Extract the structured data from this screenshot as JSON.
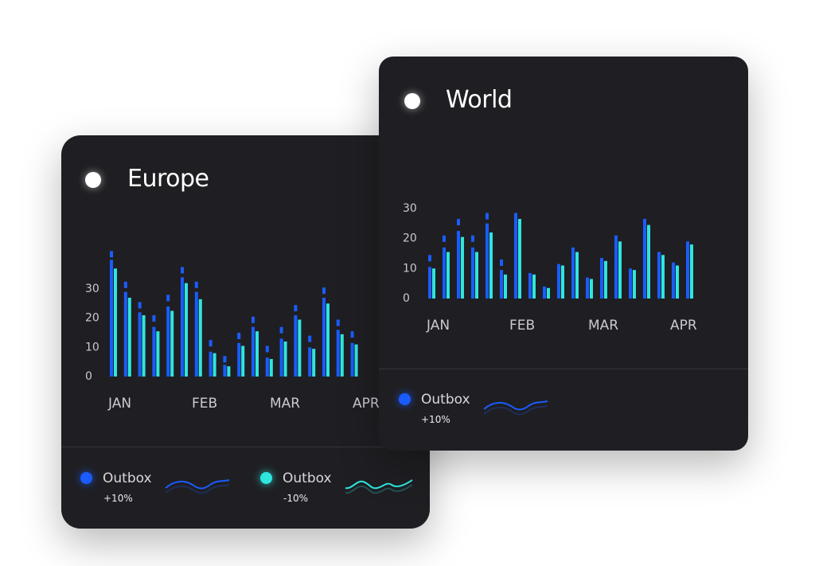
{
  "colors": {
    "outbox_blue": "#1a5cff",
    "outbox_cyan": "#2ee6de",
    "card_bg": "#1f1f23",
    "axis_text": "#c9c9cf"
  },
  "cards": {
    "europe": {
      "title": "Europe",
      "legend": [
        {
          "label": "Outbox",
          "change": "+10%",
          "color": "#1a5cff"
        },
        {
          "label": "Outbox",
          "change": "-10%",
          "color": "#2ee6de"
        }
      ]
    },
    "world": {
      "title": "World",
      "legend": [
        {
          "label": "Outbox",
          "change": "+10%",
          "color": "#1a5cff"
        }
      ]
    }
  },
  "chart_data": [
    {
      "type": "bar",
      "title": "Europe",
      "xlabel": "",
      "ylabel": "",
      "ylim": [
        0,
        45
      ],
      "yticks": [
        "0",
        "10",
        "20",
        "30"
      ],
      "xtick_labels": [
        "JAN",
        "FEB",
        "MAR",
        "APR"
      ],
      "series": [
        {
          "name": "Outbox",
          "color": "#1a5cff",
          "values": [
            40,
            29,
            22,
            17,
            24,
            34,
            29,
            8.5,
            4,
            11.5,
            17,
            6.5,
            13,
            21,
            10,
            27,
            16,
            11.5
          ],
          "cap_values": [
            43,
            32.5,
            25.5,
            21,
            28,
            37.5,
            32.5,
            12.5,
            7,
            15,
            20.5,
            10.5,
            17,
            24.5,
            14,
            30.5,
            19.5,
            15.5
          ]
        },
        {
          "name": "Outbox",
          "color": "#2ee6de",
          "values": [
            37,
            27,
            21,
            15.5,
            22.5,
            32,
            26.5,
            8,
            3.5,
            10.5,
            15.5,
            6,
            12,
            19.5,
            9.5,
            25,
            14.5,
            11
          ]
        }
      ]
    },
    {
      "type": "bar",
      "title": "World",
      "xlabel": "",
      "ylabel": "",
      "ylim": [
        0,
        35
      ],
      "yticks": [
        "0",
        "10",
        "20",
        "30"
      ],
      "xtick_labels": [
        "JAN",
        "FEB",
        "MAR",
        "APR"
      ],
      "series": [
        {
          "name": "Outbox",
          "color": "#1a5cff",
          "values": [
            10.5,
            17,
            22.5,
            17,
            25,
            9.5,
            28.5,
            8.5,
            4,
            11.5,
            17,
            7,
            13.5,
            21,
            10,
            26.5,
            15.5,
            12,
            19
          ],
          "cap_values": [
            14.5,
            21,
            26.5,
            21,
            28.5,
            13,
            null,
            null,
            null,
            null,
            null,
            null,
            null,
            null,
            null,
            null,
            null,
            null,
            null
          ]
        },
        {
          "name": "Outbox",
          "color": "#2ee6de",
          "values": [
            10,
            15.5,
            20.5,
            15.5,
            22,
            8,
            26.5,
            8,
            3.5,
            11,
            15.5,
            6.5,
            12.5,
            19,
            9.5,
            24.5,
            14.5,
            11,
            18
          ]
        }
      ]
    }
  ]
}
